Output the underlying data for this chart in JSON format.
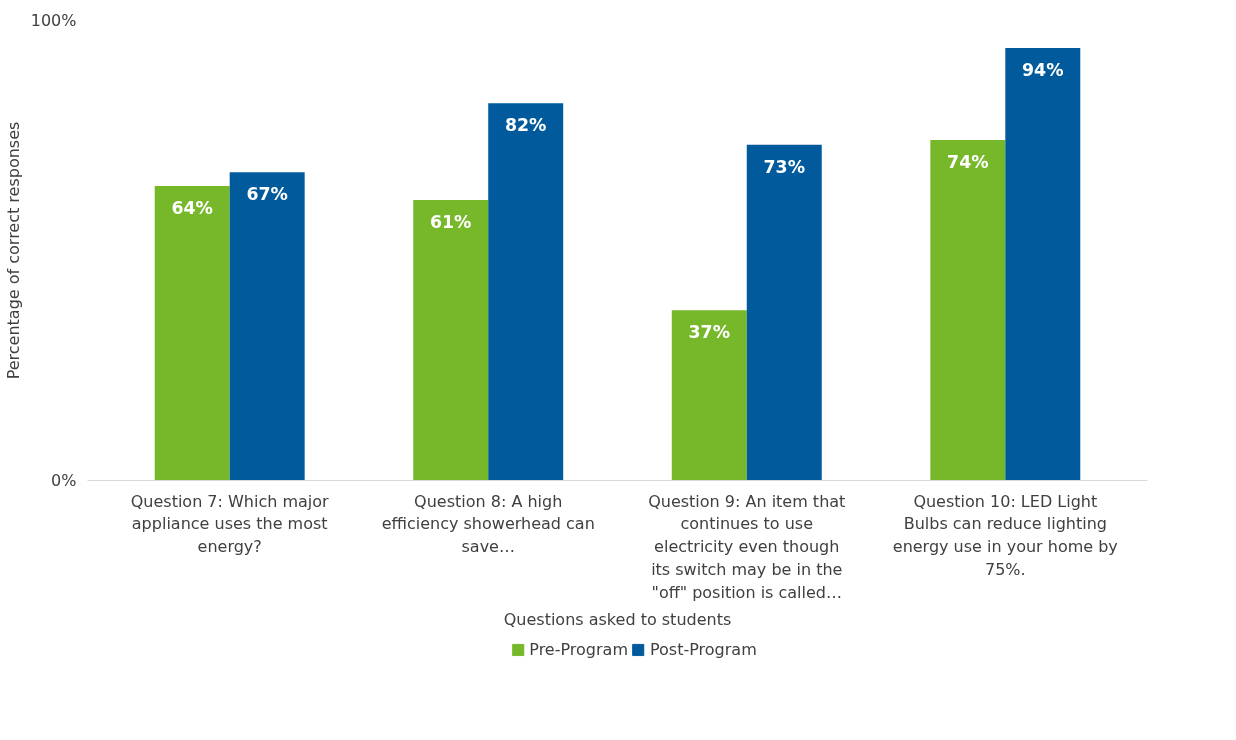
{
  "chart_data": {
    "type": "bar",
    "xlabel": "Questions asked to students",
    "ylabel": "Percentage of correct responses",
    "categories": [
      "Question 7: Which major appliance uses the most energy?",
      "Question 8: A high efficiency showerhead can save…",
      "Question 9: An item that continues to use electricity even though its switch may be in the \"off\" position is called…",
      "Question 10: LED Light Bulbs can reduce lighting energy use in your home by 75%."
    ],
    "series": [
      {
        "name": "Pre-Program",
        "color": "#76b82a",
        "values": [
          64,
          61,
          37,
          74
        ]
      },
      {
        "name": "Post-Program",
        "color": "#005a9c",
        "values": [
          67,
          82,
          73,
          94
        ]
      }
    ],
    "ylim": [
      0,
      100
    ],
    "yticks": [
      {
        "value": 0,
        "label": "0%"
      },
      {
        "value": 100,
        "label": "100%"
      }
    ],
    "value_labels": [
      [
        "64%",
        "61%",
        "37%",
        "74%"
      ],
      [
        "67%",
        "82%",
        "73%",
        "94%"
      ]
    ],
    "grid": false,
    "legend": "bottom"
  }
}
